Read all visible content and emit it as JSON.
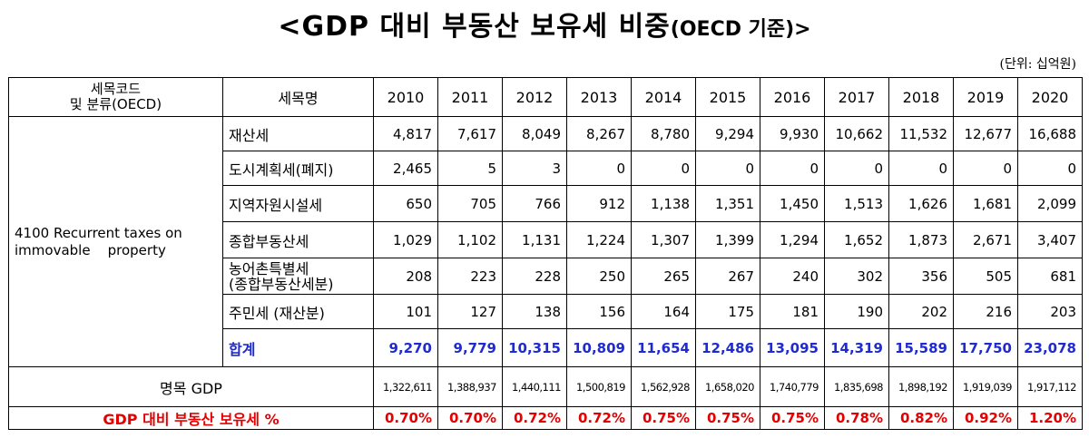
{
  "title": "<GDP 대비 부동산 보유세 비중",
  "title_suffix": "(OECD 기준)>",
  "unit": "(단위: 십억원)",
  "header": {
    "code_line1": "세목코드",
    "code_line2": "및 분류(OECD)",
    "name": "세목명",
    "years": [
      "2010",
      "2011",
      "2012",
      "2013",
      "2014",
      "2015",
      "2016",
      "2017",
      "2018",
      "2019",
      "2020"
    ]
  },
  "category": {
    "line1": "4100 Recurrent taxes on",
    "line2": "immovable    property"
  },
  "rows": [
    {
      "name": "재산세",
      "values": [
        "4,817",
        "7,617",
        "8,049",
        "8,267",
        "8,780",
        "9,294",
        "9,930",
        "10,662",
        "11,532",
        "12,677",
        "16,688"
      ]
    },
    {
      "name": "도시계획세(폐지)",
      "values": [
        "2,465",
        "5",
        "3",
        "0",
        "0",
        "0",
        "0",
        "0",
        "0",
        "0",
        "0"
      ]
    },
    {
      "name": "지역자원시설세",
      "values": [
        "650",
        "705",
        "766",
        "912",
        "1,138",
        "1,351",
        "1,450",
        "1,513",
        "1,626",
        "1,681",
        "2,099"
      ]
    },
    {
      "name": "종합부동산세",
      "values": [
        "1,029",
        "1,102",
        "1,131",
        "1,224",
        "1,307",
        "1,399",
        "1,294",
        "1,652",
        "1,873",
        "2,671",
        "3,407"
      ]
    },
    {
      "name_line1": "농어촌특별세",
      "name_line2": "(종합부동산세분)",
      "values": [
        "208",
        "223",
        "228",
        "250",
        "265",
        "267",
        "240",
        "302",
        "356",
        "505",
        "681"
      ]
    },
    {
      "name": "주민세 (재산분)",
      "values": [
        "101",
        "127",
        "138",
        "156",
        "164",
        "175",
        "181",
        "190",
        "202",
        "216",
        "203"
      ]
    }
  ],
  "total": {
    "name": "합계",
    "values": [
      "9,270",
      "9,779",
      "10,315",
      "10,809",
      "11,654",
      "12,486",
      "13,095",
      "14,319",
      "15,589",
      "17,750",
      "23,078"
    ]
  },
  "gdp": {
    "label": "명목 GDP",
    "values": [
      "1,322,611",
      "1,388,937",
      "1,440,111",
      "1,500,819",
      "1,562,928",
      "1,658,020",
      "1,740,779",
      "1,835,698",
      "1,898,192",
      "1,919,039",
      "1,917,112"
    ]
  },
  "ratio": {
    "label": "GDP 대비 부동산 보유세 %",
    "values": [
      "0.70%",
      "0.70%",
      "0.72%",
      "0.72%",
      "0.75%",
      "0.75%",
      "0.75%",
      "0.78%",
      "0.82%",
      "0.92%",
      "1.20%"
    ]
  },
  "colors": {
    "total_text": "#1f2bd0",
    "ratio_text": "#e30000"
  }
}
